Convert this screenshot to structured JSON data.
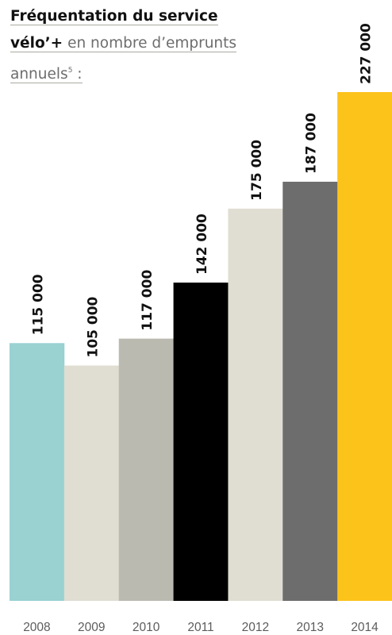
{
  "title": {
    "line1": "Fréquentation du service",
    "line2_bold": "vélo’+",
    "line2_rest": " en nombre d’emprunts",
    "line3_text": "annuels",
    "line3_sup": "5",
    "line3_colon": " :"
  },
  "chart_data": {
    "type": "bar",
    "title": "Fréquentation du service vélo’+ en nombre d’emprunts annuels⁵ :",
    "categories": [
      "2008",
      "2009",
      "2010",
      "2011",
      "2012",
      "2013",
      "2014"
    ],
    "values": [
      115000,
      105000,
      117000,
      142000,
      175000,
      187000,
      227000
    ],
    "value_labels": [
      "115 000",
      "105 000",
      "117 000",
      "142 000",
      "175 000",
      "187 000",
      "227 000"
    ],
    "colors": [
      "#9ad1d1",
      "#e0ddd2",
      "#bbbab1",
      "#000000",
      "#e0ddd2",
      "#6d6d6d",
      "#fcc31b"
    ],
    "ylim": [
      0,
      227000
    ],
    "grid": false,
    "legend": "none",
    "xlabel": "",
    "ylabel": ""
  }
}
